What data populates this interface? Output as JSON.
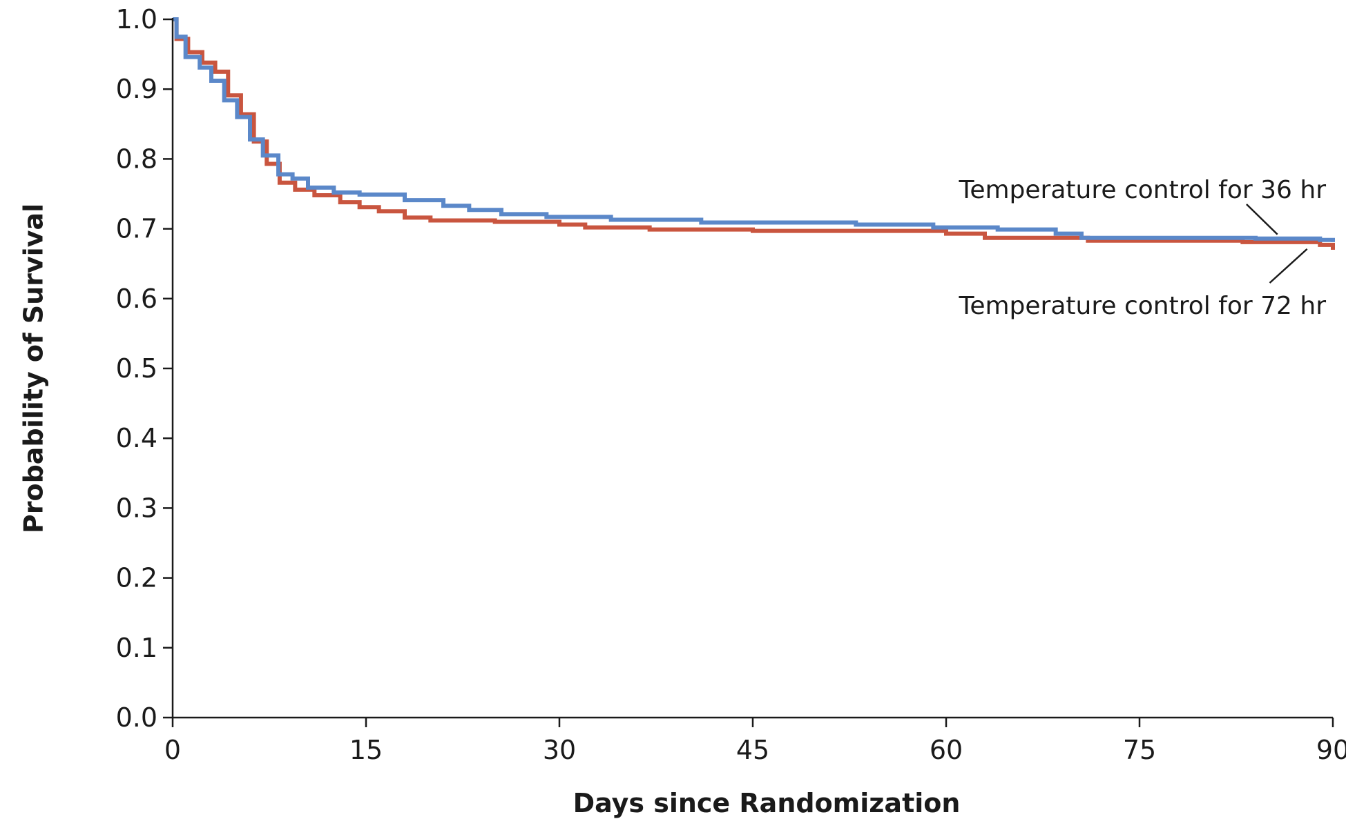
{
  "chart_data": {
    "type": "line",
    "title": "",
    "xlabel": "Days since Randomization",
    "ylabel": "Probability of Survival",
    "xlim": [
      0,
      90
    ],
    "ylim": [
      0.0,
      1.0
    ],
    "x_ticks": [
      "0",
      "15",
      "30",
      "45",
      "60",
      "75",
      "90"
    ],
    "x_tick_values": [
      0,
      15,
      30,
      45,
      60,
      75,
      90
    ],
    "y_ticks": [
      "0.0",
      "0.1",
      "0.2",
      "0.3",
      "0.4",
      "0.5",
      "0.6",
      "0.7",
      "0.8",
      "0.9",
      "1.0"
    ],
    "y_tick_values": [
      0.0,
      0.1,
      0.2,
      0.3,
      0.4,
      0.5,
      0.6,
      0.7,
      0.8,
      0.9,
      1.0
    ],
    "grid": false,
    "step": true,
    "series": [
      {
        "name": "Temperature control for 36 hr",
        "color": "#5b88c9",
        "x": [
          0,
          0.3,
          1.0,
          2.1,
          3.0,
          4.0,
          5.0,
          6.0,
          7.0,
          8.2,
          9.3,
          10.5,
          12.5,
          14.5,
          18.0,
          21.0,
          23.0,
          25.5,
          29.0,
          34.0,
          41.0,
          53.0,
          59.0,
          64.0,
          68.5,
          70.5,
          84.0,
          89.0,
          90.0
        ],
        "y": [
          1.0,
          0.975,
          0.946,
          0.931,
          0.912,
          0.884,
          0.86,
          0.828,
          0.805,
          0.778,
          0.772,
          0.759,
          0.752,
          0.749,
          0.741,
          0.733,
          0.727,
          0.721,
          0.717,
          0.713,
          0.709,
          0.706,
          0.702,
          0.699,
          0.693,
          0.687,
          0.686,
          0.684,
          0.681
        ]
      },
      {
        "name": "Temperature control for 72 hr",
        "color": "#c9553f",
        "x": [
          0,
          0.3,
          1.2,
          2.3,
          3.3,
          4.3,
          5.3,
          6.3,
          7.3,
          8.3,
          9.5,
          11.0,
          13.0,
          14.5,
          16.0,
          18.0,
          20.0,
          25.0,
          30.0,
          32.0,
          37.0,
          45.0,
          60.0,
          63.0,
          71.0,
          83.0,
          89.0,
          90.0
        ],
        "y": [
          1.0,
          0.972,
          0.953,
          0.938,
          0.925,
          0.891,
          0.864,
          0.825,
          0.793,
          0.766,
          0.756,
          0.748,
          0.738,
          0.731,
          0.725,
          0.716,
          0.712,
          0.71,
          0.706,
          0.702,
          0.699,
          0.697,
          0.693,
          0.687,
          0.683,
          0.681,
          0.677,
          0.67
        ]
      }
    ],
    "annotations": [
      {
        "text": "Temperature control for 36 hr",
        "series": 0
      },
      {
        "text": "Temperature control for 72 hr",
        "series": 1
      }
    ]
  }
}
